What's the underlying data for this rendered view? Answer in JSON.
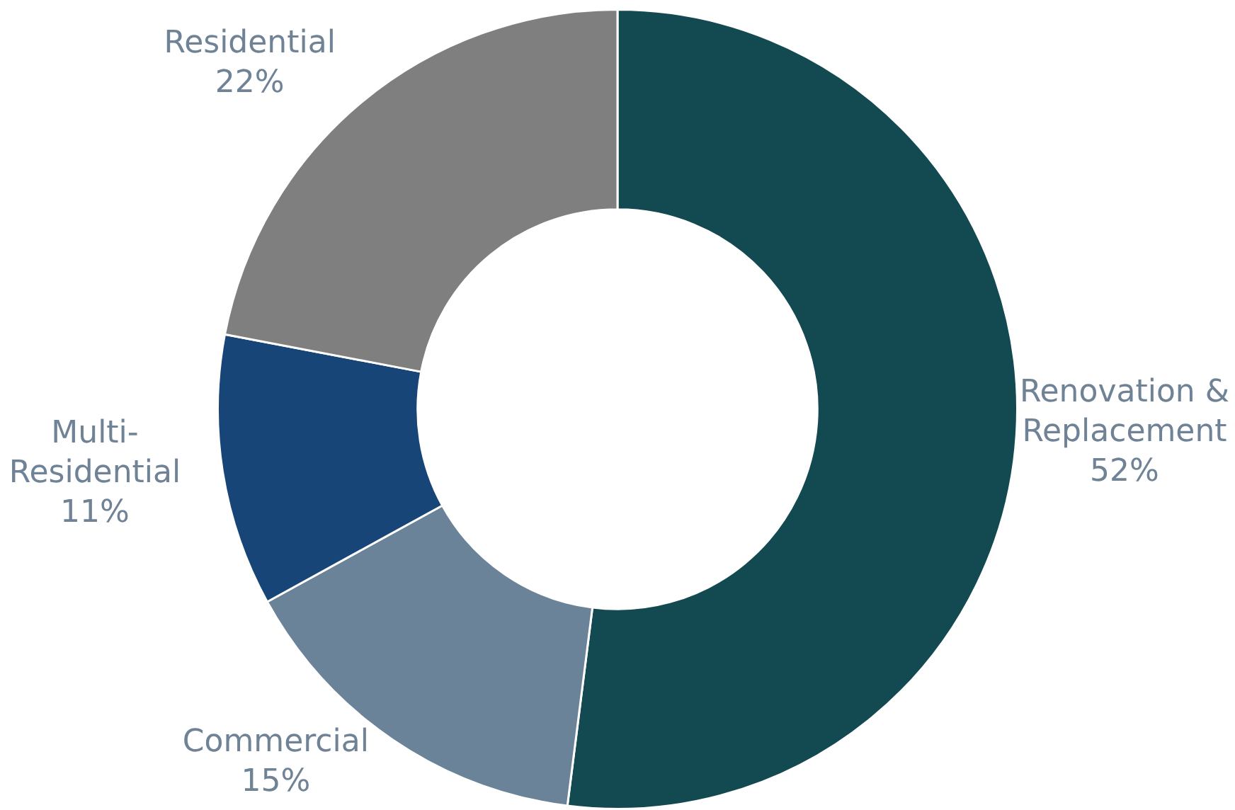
{
  "chart_data": {
    "type": "donut",
    "categories": [
      "Renovation & Replacement",
      "Commercial",
      "Multi-Residential",
      "Residential"
    ],
    "values": [
      52,
      15,
      11,
      22
    ],
    "colors": [
      "#134a52",
      "#6b8399",
      "#174577",
      "#7f7f7f"
    ],
    "value_labels": [
      "52%",
      "15%",
      "11%",
      "22%"
    ],
    "legend": false
  }
}
